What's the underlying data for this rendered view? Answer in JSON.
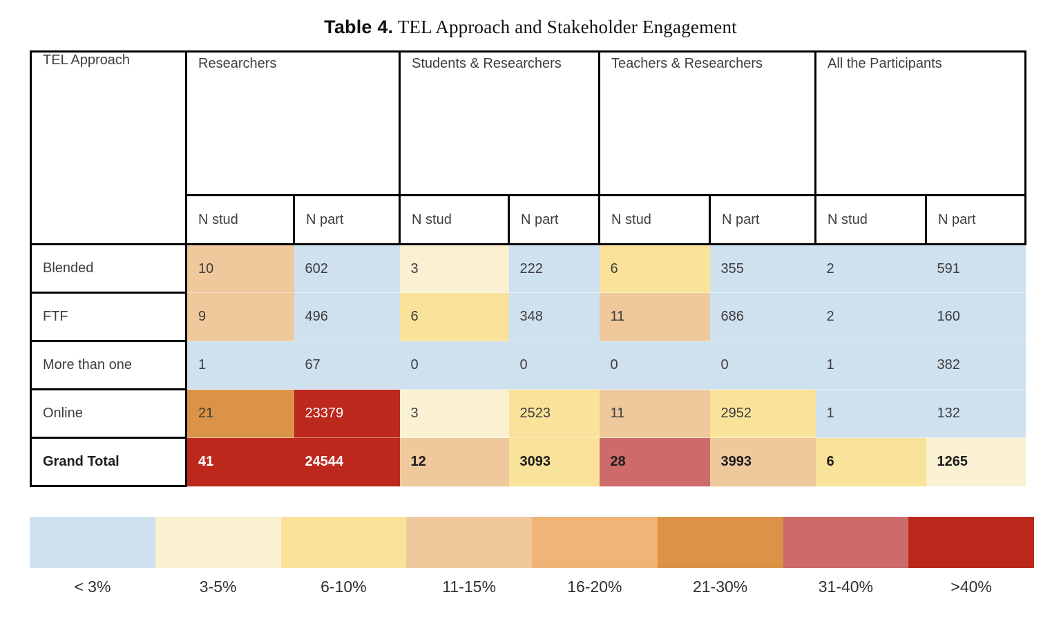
{
  "title": {
    "label": "Table 4.",
    "text": " TEL Approach and Stakeholder Engagement"
  },
  "table": {
    "corner_header": "TEL Approach",
    "groups": [
      {
        "label": "Researchers"
      },
      {
        "label": "Students & Researchers"
      },
      {
        "label": "Teachers & Researchers"
      },
      {
        "label": "All the Participants"
      }
    ],
    "subheaders": [
      "N stud",
      "N part",
      "N stud",
      "N part",
      "N stud",
      "N part",
      "N stud",
      "N part"
    ],
    "rows": [
      {
        "label": "Blended",
        "bold": false,
        "cells": [
          {
            "v": "10",
            "bg": "#efc89c"
          },
          {
            "v": "602",
            "bg": "#cfe0ef"
          },
          {
            "v": "3",
            "bg": "#faf0d2"
          },
          {
            "v": "222",
            "bg": "#cfe0ef"
          },
          {
            "v": "6",
            "bg": "#f9e29a"
          },
          {
            "v": "355",
            "bg": "#cfe0ef"
          },
          {
            "v": "2",
            "bg": "#cfe0ef"
          },
          {
            "v": "591",
            "bg": "#cfe0ef"
          }
        ]
      },
      {
        "label": "FTF",
        "bold": false,
        "cells": [
          {
            "v": "9",
            "bg": "#efc89c"
          },
          {
            "v": "496",
            "bg": "#cfe0ef"
          },
          {
            "v": "6",
            "bg": "#f9e29a"
          },
          {
            "v": "348",
            "bg": "#cfe0ef"
          },
          {
            "v": "11",
            "bg": "#efc89c"
          },
          {
            "v": "686",
            "bg": "#cfe0ef"
          },
          {
            "v": "2",
            "bg": "#cfe0ef"
          },
          {
            "v": "160",
            "bg": "#cfe0ef"
          }
        ]
      },
      {
        "label": "More than one",
        "bold": false,
        "cells": [
          {
            "v": "1",
            "bg": "#cfe0ef"
          },
          {
            "v": "67",
            "bg": "#cfe0ef"
          },
          {
            "v": "0",
            "bg": "#cfe0ef"
          },
          {
            "v": "0",
            "bg": "#cfe0ef"
          },
          {
            "v": "0",
            "bg": "#cfe0ef"
          },
          {
            "v": "0",
            "bg": "#cfe0ef"
          },
          {
            "v": "1",
            "bg": "#cfe0ef"
          },
          {
            "v": "382",
            "bg": "#cfe0ef"
          }
        ]
      },
      {
        "label": "Online",
        "bold": false,
        "cells": [
          {
            "v": "21",
            "bg": "#db9347"
          },
          {
            "v": "23379",
            "bg": "#bd281c",
            "fg": "#ffffff"
          },
          {
            "v": "3",
            "bg": "#faf0d2"
          },
          {
            "v": "2523",
            "bg": "#f9e29a"
          },
          {
            "v": "11",
            "bg": "#efc89c"
          },
          {
            "v": "2952",
            "bg": "#f9e29a"
          },
          {
            "v": "1",
            "bg": "#cfe0ef"
          },
          {
            "v": "132",
            "bg": "#cfe0ef"
          }
        ]
      },
      {
        "label": "Grand Total",
        "bold": true,
        "cells": [
          {
            "v": "41",
            "bg": "#bd281c",
            "fg": "#ffffff"
          },
          {
            "v": "24544",
            "bg": "#bd281c",
            "fg": "#ffffff"
          },
          {
            "v": "12",
            "bg": "#efc89c"
          },
          {
            "v": "3093",
            "bg": "#f9e29a"
          },
          {
            "v": "28",
            "bg": "#cd6b6b"
          },
          {
            "v": "3993",
            "bg": "#efc89c"
          },
          {
            "v": "6",
            "bg": "#f9e29a"
          },
          {
            "v": "1265",
            "bg": "#faf0d2"
          }
        ]
      }
    ]
  },
  "legend": {
    "bins": [
      {
        "label": "< 3%",
        "color": "#cfe0ef"
      },
      {
        "label": "3-5%",
        "color": "#faf0d2"
      },
      {
        "label": "6-10%",
        "color": "#f9e29a"
      },
      {
        "label": "11-15%",
        "color": "#efc89c"
      },
      {
        "label": "16-20%",
        "color": "#eeb577"
      },
      {
        "label": "21-30%",
        "color": "#db9347"
      },
      {
        "label": "31-40%",
        "color": "#cd6b6b"
      },
      {
        "label": ">40%",
        "color": "#bd281c"
      }
    ]
  },
  "chart_data": {
    "type": "heatmap",
    "title": "Table 4. TEL Approach and Stakeholder Engagement",
    "row_labels": [
      "Blended",
      "FTF",
      "More than one",
      "Online",
      "Grand Total"
    ],
    "column_groups": [
      "Researchers",
      "Students & Researchers",
      "Teachers & Researchers",
      "All the Participants"
    ],
    "columns": [
      "Researchers N stud",
      "Researchers N part",
      "Students & Researchers N stud",
      "Students & Researchers N part",
      "Teachers & Researchers N stud",
      "Teachers & Researchers N part",
      "All the Participants N stud",
      "All the Participants N part"
    ],
    "values": [
      [
        10,
        602,
        3,
        222,
        6,
        355,
        2,
        591
      ],
      [
        9,
        496,
        6,
        348,
        11,
        686,
        2,
        160
      ],
      [
        1,
        67,
        0,
        0,
        0,
        0,
        1,
        382
      ],
      [
        21,
        23379,
        3,
        2523,
        11,
        2952,
        1,
        132
      ],
      [
        41,
        24544,
        12,
        3093,
        28,
        3993,
        6,
        1265
      ]
    ],
    "legend_bins": [
      "< 3%",
      "3-5%",
      "6-10%",
      "11-15%",
      "16-20%",
      "21-30%",
      "31-40%",
      ">40%"
    ],
    "legend_colors": [
      "#cfe0ef",
      "#faf0d2",
      "#f9e29a",
      "#efc89c",
      "#eeb577",
      "#db9347",
      "#cd6b6b",
      "#bd281c"
    ],
    "legend_position": "bottom"
  }
}
